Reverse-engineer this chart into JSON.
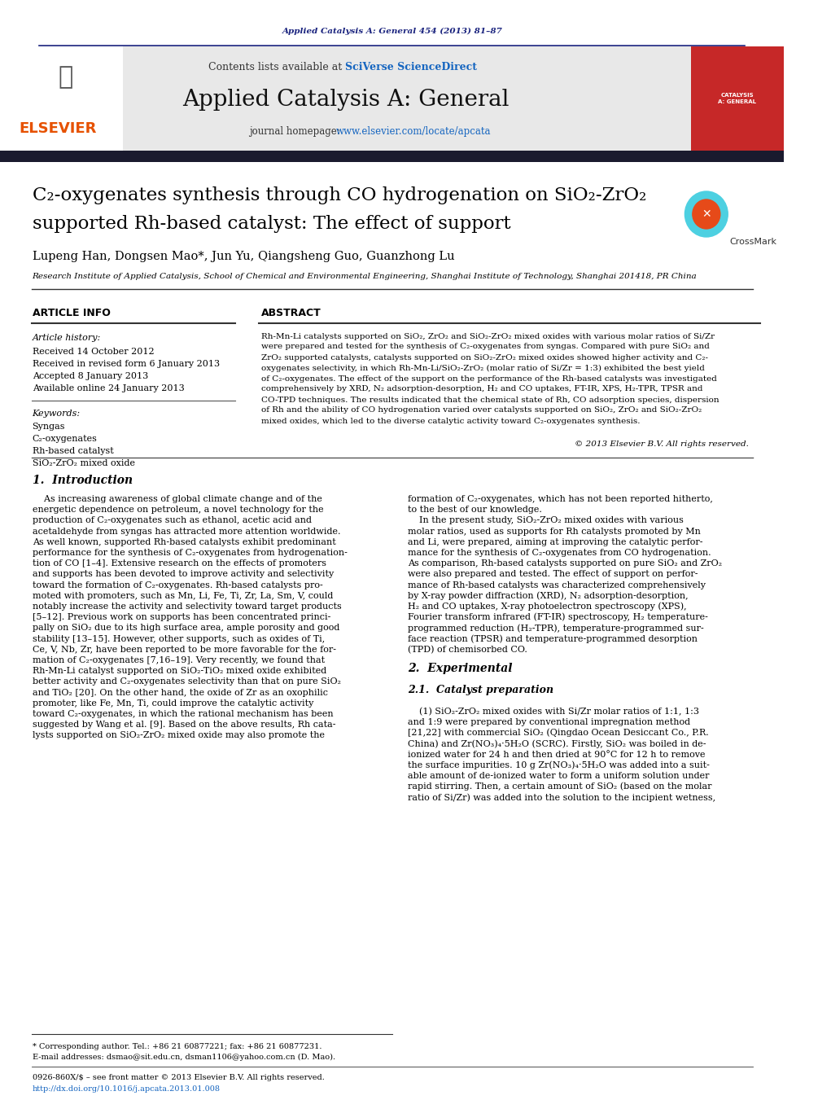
{
  "page_bg": "#ffffff",
  "top_citation": "Applied Catalysis A: General 454 (2013) 81–87",
  "top_citation_color": "#1a237e",
  "top_line_color": "#1a237e",
  "header_bg": "#e8e8e8",
  "header_text": "Contents lists available at ",
  "sciverse_text": "SciVerse ScienceDirect",
  "sciverse_color": "#1565c0",
  "journal_title": "Applied Catalysis A: General",
  "journal_homepage_prefix": "journal homepage: ",
  "journal_homepage_url": "www.elsevier.com/locate/apcata",
  "journal_homepage_color": "#1565c0",
  "elsevier_color": "#e65100",
  "dark_bar_color": "#1a1a2e",
  "article_title_line1": "C₂-oxygenates synthesis through CO hydrogenation on SiO₂-ZrO₂",
  "article_title_line2": "supported Rh-based catalyst: The effect of support",
  "title_color": "#000000",
  "authors": "Lupeng Han, Dongsen Mao*, Jun Yu, Qiangsheng Guo, Guanzhong Lu",
  "affiliation": "Research Institute of Applied Catalysis, School of Chemical and Environmental Engineering, Shanghai Institute of Technology, Shanghai 201418, PR China",
  "section_article_info": "ARTICLE INFO",
  "section_abstract": "ABSTRACT",
  "article_history_label": "Article history:",
  "received": "Received 14 October 2012",
  "received_revised": "Received in revised form 6 January 2013",
  "accepted": "Accepted 8 January 2013",
  "available": "Available online 24 January 2013",
  "keywords_label": "Keywords:",
  "keywords": [
    "Syngas",
    "C₂-oxygenates",
    "Rh-based catalyst",
    "SiO₂-ZrO₂ mixed oxide"
  ],
  "abstract_text": "Rh-Mn-Li catalysts supported on SiO₂, ZrO₂ and SiO₂-ZrO₂ mixed oxides with various molar ratios of Si/Zr were prepared and tested for the synthesis of C₂-oxygenates from syngas. Compared with pure SiO₂ and ZrO₂ supported catalysts, catalysts supported on SiO₂-ZrO₂ mixed oxides showed higher activity and C₂-oxygenates selectivity, in which Rh-Mn-Li/SiO₂-ZrO₂ (molar ratio of Si/Zr = 1:3) exhibited the best yield of C₂-oxygenates. The effect of the support on the performance of the Rh-based catalysts was investigated comprehensively by XRD, N₂ adsorption-desorption, H₂ and CO uptakes, FT-IR, XPS, H₂-TPR, TPSR and CO-TPD techniques. The results indicated that the chemical state of Rh, CO adsorption species, dispersion of Rh and the ability of CO hydrogenation varied over catalysts supported on SiO₂, ZrO₂ and SiO₂-ZrO₂ mixed oxides, which led to the diverse catalytic activity toward C₂-oxygenates synthesis.",
  "copyright": "© 2013 Elsevier B.V. All rights reserved.",
  "intro_heading": "1.  Introduction",
  "intro_col1": "As increasing awareness of global climate change and of the energetic dependence on petroleum, a novel technology for the production of C₂-oxygenates such as ethanol, acetic acid and acetaldehyde from syngas has attracted more attention worldwide. As well known, supported Rh-based catalysts exhibit predominant performance for the synthesis of C₂-oxygenates from hydrogenation of CO [1–4]. Extensive research on the effects of promoters and supports has been devoted to improve activity and selectivity toward the formation of C₂-oxygenates. Rh-based catalysts promoted with promoters, such as Mn, Li, Fe, Ti, Zr, La, Sm, V, could notably increase the activity and selectivity toward target products [5–12]. Previous work on supports has been concentrated principally on SiO₂ due to its high surface area, ample porosity and good stability [13–15]. However, other supports, such as oxides of Ti, Ce, V, Nb, Zr, have been reported to be more favorable for the formation of C₂-oxygenates [7,16–19]. Very recently, we found that Rh-Mn-Li catalyst supported on SiO₂-TiO₂ mixed oxide exhibited better activity and C₂-oxygenates selectivity than that on pure SiO₂ and TiO₂ [20]. On the other hand, the oxide of Zr as an oxophilic promoter, like Fe, Mn, Ti, could improve the catalytic activity toward C₂-oxygenates, in which the rational mechanism has been suggested by Wang et al. [9]. Based on the above results, Rh catalysts supported on SiO₂-ZrO₂ mixed oxide may also promote the",
  "intro_col2": "formation of C₂-oxygenates, which has not been reported hitherto, to the best of our knowledge.\n    In the present study, SiO₂-ZrO₂ mixed oxides with various molar ratios, used as supports for Rh catalysts promoted by Mn and Li, were prepared, aiming at improving the catalytic performance for the synthesis of C₂-oxygenates from CO hydrogenation. As comparison, Rh-based catalysts supported on pure SiO₂ and ZrO₂ were also prepared and tested. The effect of support on performance of Rh-based catalysts was characterized comprehensively by X-ray powder diffraction (XRD), N₂ adsorption-desorption, H₂ and CO uptakes, X-ray photoelectron spectroscopy (XPS), Fourier transform infrared (FT-IR) spectroscopy, H₂ temperature-programmed reduction (H₂-TPR), temperature-programmed surface reaction (TPSR) and temperature-programmed desorption (TPD) of chemisorbed CO.",
  "section2_heading": "2.  Experimental",
  "section21_heading": "2.1.  Catalyst preparation",
  "section21_text": "(1) SiO₂-ZrO₂ mixed oxides with Si/Zr molar ratios of 1:1, 1:3 and 1:9 were prepared by conventional impregnation method [21,22] with commercial SiO₂ (Qingdao Ocean Desiccant Co., P.R. China) and Zr(NO₃)₄·5H₂O (SCRC). Firstly, SiO₂ was boiled in deionized water for 24 h and then dried at 90°C for 12 h to remove the surface impurities. 10 g Zr(NO₃)₄·5H₂O was added into a suitable amount of de-ionized water to form a uniform solution under rapid stirring. Then, a certain amount of SiO₂ (based on the molar ratio of Si/Zr) was added into the solution to the incipient wetness,",
  "footnote1": "* Corresponding author. Tel.: +86 21 60877221; fax: +86 21 60877231.",
  "footnote2": "E-mail addresses: dsmao@sit.edu.cn, dsman1106@yahoo.com.cn (D. Mao).",
  "footnote3": "0926-860X/$ – see front matter © 2013 Elsevier B.V. All rights reserved.",
  "footnote4": "http://dx.doi.org/10.1016/j.apcata.2013.01.008",
  "catalog_bar_color": "#c62828",
  "header_divider_color": "#1a237e"
}
